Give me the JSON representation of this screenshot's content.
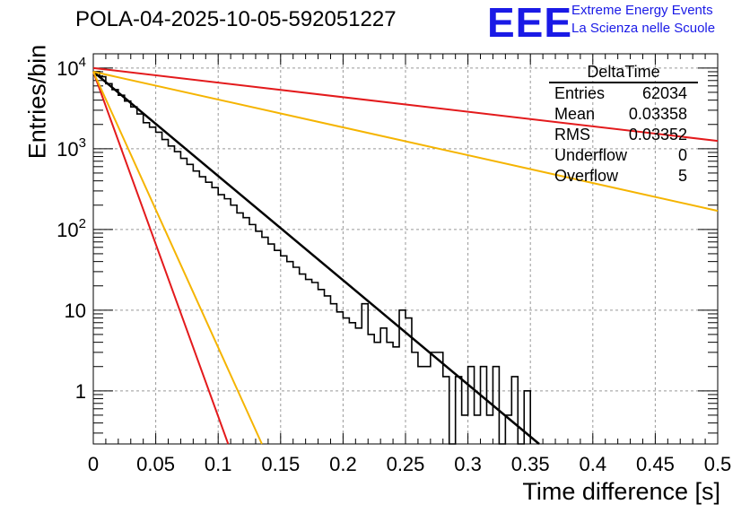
{
  "title": "POLA-04-2025-10-05-592051227",
  "logo": {
    "mark": "EEE",
    "line1": "Extreme Energy Events",
    "line2": "La Scienza nelle Scuole",
    "color": "#1a1ae6"
  },
  "stats": {
    "title": "DeltaTime",
    "rows": [
      {
        "label": "Entries",
        "value": "62034"
      },
      {
        "label": "Mean",
        "value": "0.03358"
      },
      {
        "label": "RMS",
        "value": "0.03352"
      },
      {
        "label": "Underflow",
        "value": "0"
      },
      {
        "label": "Overflow",
        "value": "5"
      }
    ]
  },
  "chart_data": {
    "type": "line",
    "title": "POLA-04-2025-10-05-592051227",
    "xlabel": "Time difference [s]",
    "ylabel": "Entries/bin",
    "xlim": [
      0,
      0.5
    ],
    "ylim": [
      0.22,
      15000
    ],
    "yscale": "log",
    "grid": true,
    "x_ticks": [
      0,
      0.05,
      0.1,
      0.15,
      0.2,
      0.25,
      0.3,
      0.35,
      0.4,
      0.45,
      0.5
    ],
    "x_tick_labels": [
      "0",
      "0.05",
      "0.1",
      "0.15",
      "0.2",
      "0.25",
      "0.3",
      "0.35",
      "0.4",
      "0.45",
      "0.5"
    ],
    "y_ticks": [
      1,
      10,
      100,
      1000,
      10000
    ],
    "y_tick_labels": [
      {
        "base": "1",
        "exp": ""
      },
      {
        "base": "10",
        "exp": ""
      },
      {
        "base": "10",
        "exp": "2"
      },
      {
        "base": "10",
        "exp": "3"
      },
      {
        "base": "10",
        "exp": "4"
      }
    ],
    "histogram": {
      "name": "DeltaTime",
      "color": "#000000",
      "bin_width": 0.005,
      "values": [
        9000,
        7800,
        6400,
        5400,
        4600,
        3900,
        3300,
        2700,
        2100,
        1850,
        1600,
        1300,
        1080,
        920,
        760,
        640,
        530,
        450,
        385,
        330,
        270,
        240,
        200,
        160,
        140,
        115,
        95,
        80,
        66,
        55,
        47,
        40,
        34,
        28,
        24,
        22,
        18,
        15,
        12,
        9.5,
        8,
        7,
        6,
        12,
        5,
        4,
        6,
        4,
        3.5,
        10,
        8,
        3,
        2,
        2,
        3,
        3,
        1.5,
        0,
        1.5,
        0.5,
        2,
        0.5,
        2,
        0.5,
        2,
        0,
        0.5,
        1.5,
        0,
        1
      ]
    },
    "series": [
      {
        "name": "fit",
        "color": "#000000",
        "width": 2.5,
        "x": [
          0,
          0.357
        ],
        "y": [
          9000,
          0.22
        ]
      },
      {
        "name": "red-steep",
        "color": "#e31a1c",
        "width": 2,
        "x": [
          0,
          0.108
        ],
        "y": [
          9000,
          0.22
        ]
      },
      {
        "name": "orange-steep",
        "color": "#f5b400",
        "width": 2,
        "x": [
          0,
          0.135
        ],
        "y": [
          9000,
          0.22
        ]
      },
      {
        "name": "red-flat",
        "color": "#e31a1c",
        "width": 2,
        "x": [
          0,
          0.5
        ],
        "y": [
          10000,
          1250
        ]
      },
      {
        "name": "orange-flat",
        "color": "#f5b400",
        "width": 2,
        "x": [
          0,
          0.5
        ],
        "y": [
          9000,
          170
        ]
      }
    ]
  }
}
